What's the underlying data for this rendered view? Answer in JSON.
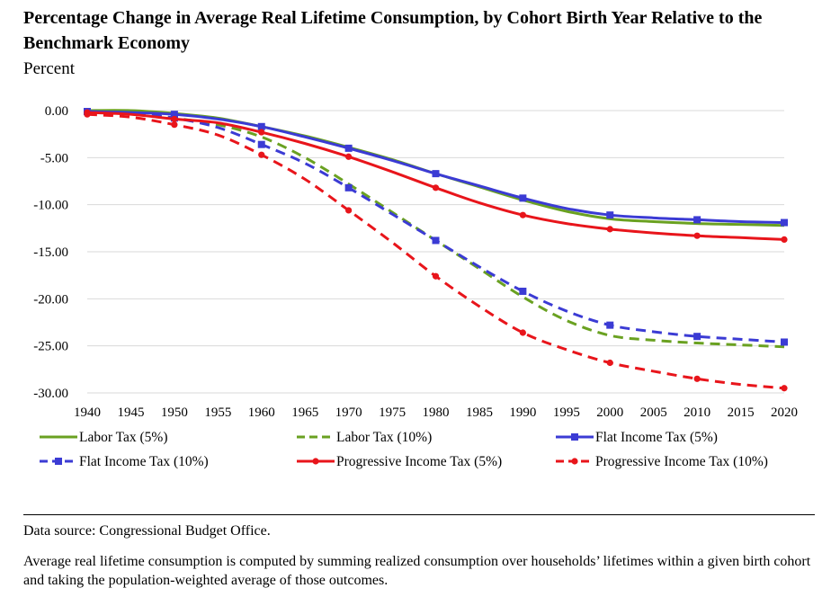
{
  "title": "Percentage Change in Average Real Lifetime Consumption, by Cohort Birth Year Relative to the Benchmark Economy",
  "unit_label": "Percent",
  "footer": {
    "source": "Data source: Congressional Budget Office.",
    "note": "Average real lifetime consumption is computed by summing realized consumption over households’ lifetimes within a given birth cohort and taking the population-weighted average of those outcomes."
  },
  "chart_data": {
    "type": "line",
    "ylim": [
      -30,
      0
    ],
    "xlim": [
      1940,
      2020
    ],
    "x_ticks": [
      "1940",
      "1945",
      "1950",
      "1955",
      "1960",
      "1965",
      "1970",
      "1975",
      "1980",
      "1985",
      "1990",
      "1995",
      "2000",
      "2005",
      "2010",
      "2015",
      "2020"
    ],
    "y_ticks": [
      "0.00",
      "-5.00",
      "-10.00",
      "-15.00",
      "-20.00",
      "-25.00",
      "-30.00"
    ],
    "grid": true,
    "legend_position": "bottom",
    "x": [
      1940,
      1945,
      1950,
      1955,
      1960,
      1965,
      1970,
      1975,
      1980,
      1985,
      1990,
      1995,
      2000,
      2005,
      2010,
      2015,
      2020
    ],
    "series": [
      {
        "name": "Labor Tax (5%)",
        "color": "#6aa121",
        "dashed": false,
        "marker": false,
        "values": [
          0.0,
          0.0,
          -0.3,
          -0.8,
          -1.7,
          -2.7,
          -3.9,
          -5.2,
          -6.7,
          -8.1,
          -9.5,
          -10.7,
          -11.5,
          -11.8,
          -12.0,
          -12.1,
          -12.2
        ]
      },
      {
        "name": "Labor Tax (10%)",
        "color": "#6aa121",
        "dashed": true,
        "marker": false,
        "values": [
          -0.1,
          -0.2,
          -0.8,
          -1.5,
          -2.8,
          -5.0,
          -7.8,
          -10.8,
          -13.8,
          -16.8,
          -19.8,
          -22.3,
          -23.9,
          -24.4,
          -24.7,
          -24.9,
          -25.1
        ]
      },
      {
        "name": "Flat Income Tax (5%)",
        "color": "#3b3bd4",
        "dashed": false,
        "marker": true,
        "values": [
          -0.1,
          -0.2,
          -0.4,
          -0.9,
          -1.7,
          -2.8,
          -4.0,
          -5.3,
          -6.7,
          -8.0,
          -9.3,
          -10.4,
          -11.1,
          -11.4,
          -11.6,
          -11.8,
          -11.9
        ]
      },
      {
        "name": "Flat Income Tax (10%)",
        "color": "#3b3bd4",
        "dashed": true,
        "marker": true,
        "values": [
          -0.1,
          -0.3,
          -0.8,
          -1.8,
          -3.6,
          -5.6,
          -8.2,
          -11.0,
          -13.8,
          -16.6,
          -19.2,
          -21.3,
          -22.8,
          -23.5,
          -24.0,
          -24.3,
          -24.6
        ]
      },
      {
        "name": "Progressive Income Tax (5%)",
        "color": "#e8151b",
        "dashed": false,
        "marker": true,
        "values": [
          -0.2,
          -0.4,
          -0.9,
          -1.3,
          -2.3,
          -3.5,
          -4.9,
          -6.5,
          -8.2,
          -9.8,
          -11.1,
          -12.0,
          -12.6,
          -13.0,
          -13.3,
          -13.5,
          -13.7
        ]
      },
      {
        "name": "Progressive Income Tax (10%)",
        "color": "#e8151b",
        "dashed": true,
        "marker": true,
        "values": [
          -0.4,
          -0.7,
          -1.5,
          -2.6,
          -4.7,
          -7.3,
          -10.6,
          -14.0,
          -17.6,
          -20.8,
          -23.6,
          -25.4,
          -26.8,
          -27.7,
          -28.5,
          -29.1,
          -29.5
        ]
      }
    ]
  }
}
